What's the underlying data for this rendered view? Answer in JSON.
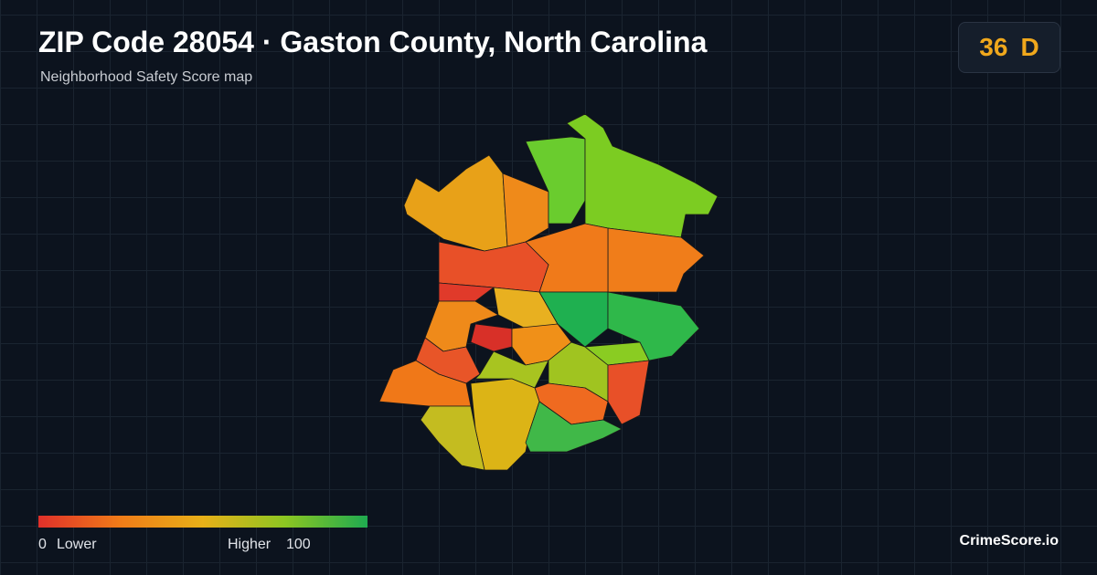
{
  "header": {
    "title": "ZIP Code 28054 · Gaston County, North Carolina",
    "subtitle": "Neighborhood Safety Score map"
  },
  "score": {
    "value": 36,
    "grade": "D"
  },
  "legend": {
    "min": 0,
    "min_label": "Lower",
    "max_label": "Higher",
    "max": 100
  },
  "brand": "CrimeScore.io"
}
